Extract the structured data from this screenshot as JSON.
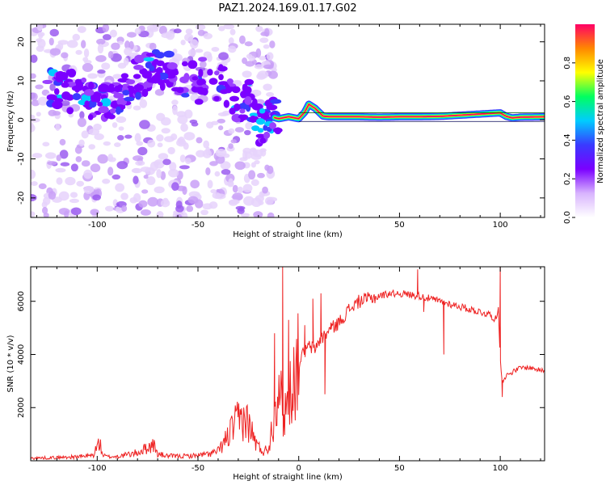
{
  "title": "PAZ1.2024.169.01.17.G02",
  "chart_data": [
    {
      "type": "heatmap",
      "xlabel": "Height of straight line (km)",
      "ylabel": "Frequency (Hz)",
      "xlim": [
        -133,
        122
      ],
      "ylim": [
        -25,
        24.5
      ],
      "xticks": [
        -100,
        -50,
        0,
        50,
        100
      ],
      "yticks": [
        -20,
        -10,
        0,
        10,
        20
      ],
      "ridge": {
        "x": [
          -120,
          -110,
          -100,
          -90,
          -80,
          -70,
          -60,
          -50,
          -45,
          -40,
          -35,
          -30,
          -25,
          -22,
          -20,
          -15,
          -10,
          -5,
          0,
          3,
          5,
          8,
          10,
          12,
          15,
          20,
          30,
          40,
          50,
          60,
          70,
          80,
          90,
          100,
          103,
          106,
          110,
          122
        ],
        "y": [
          8,
          7,
          3,
          6,
          11,
          13,
          11,
          9,
          13,
          10,
          7,
          4,
          6,
          3,
          -2,
          1,
          0.3,
          0.8,
          0.3,
          2,
          4,
          3,
          2,
          1,
          0.8,
          0.8,
          0.8,
          0.7,
          0.8,
          0.8,
          0.9,
          1.2,
          1.5,
          1.8,
          0.9,
          0.5,
          0.7,
          0.8
        ]
      },
      "colorbar": {
        "label": "Normalized spectral amplitude",
        "ticks": [
          "0.0",
          "0.2",
          "0.4",
          "0.6",
          "0.8"
        ],
        "colors": [
          "#ffffff",
          "#d8b4fe",
          "#7b00ff",
          "#3a3aff",
          "#00ccff",
          "#00ff60",
          "#ffff00",
          "#ff8800",
          "#ff0066"
        ]
      }
    },
    {
      "type": "line",
      "xlabel": "Height of straight line (km)",
      "ylabel": "SNR (10 * v/v)",
      "xlim": [
        -133,
        122
      ],
      "ylim": [
        0,
        7300
      ],
      "xticks": [
        -100,
        -50,
        0,
        50,
        100
      ],
      "yticks": [
        2000,
        4000,
        6000
      ],
      "color": "#ee2222",
      "x": [
        -133,
        -120,
        -110,
        -102,
        -99,
        -97,
        -95,
        -90,
        -80,
        -75,
        -72,
        -70,
        -65,
        -60,
        -55,
        -50,
        -45,
        -40,
        -36,
        -33,
        -30,
        -27,
        -25,
        -22,
        -20,
        -17,
        -15,
        -12,
        -10,
        -8,
        -6,
        -3,
        0,
        2,
        5,
        8,
        10,
        15,
        20,
        25,
        30,
        35,
        40,
        45,
        50,
        55,
        60,
        65,
        70,
        75,
        80,
        85,
        90,
        95,
        98,
        99,
        100,
        101,
        103,
        105,
        110,
        115,
        120,
        122
      ],
      "y": [
        100,
        120,
        150,
        200,
        700,
        200,
        150,
        160,
        300,
        500,
        600,
        250,
        180,
        170,
        180,
        200,
        250,
        350,
        800,
        1200,
        1500,
        1600,
        1400,
        800,
        500,
        350,
        500,
        1800,
        3500,
        1500,
        2200,
        3000,
        3700,
        4000,
        4300,
        4200,
        4500,
        4900,
        5200,
        5700,
        6000,
        6100,
        6200,
        6300,
        6300,
        6250,
        6200,
        6100,
        6000,
        5900,
        5800,
        5700,
        5600,
        5500,
        5300,
        5800,
        3800,
        3000,
        3200,
        3300,
        3500,
        3500,
        3400,
        3400
      ],
      "spikes": [
        {
          "x": -8,
          "y": 7300
        },
        {
          "x": -12,
          "y": 4800
        },
        {
          "x": -5,
          "y": 5300
        },
        {
          "x": 3,
          "y": 5100
        },
        {
          "x": 7,
          "y": 6100
        },
        {
          "x": 11,
          "y": 6300
        },
        {
          "x": 13,
          "y": 2500
        },
        {
          "x": 16,
          "y": 5200
        },
        {
          "x": 59,
          "y": 7200
        },
        {
          "x": 62,
          "y": 5600
        },
        {
          "x": 72,
          "y": 4000
        },
        {
          "x": 100,
          "y": 7300
        },
        {
          "x": 101,
          "y": 2400
        }
      ]
    }
  ]
}
